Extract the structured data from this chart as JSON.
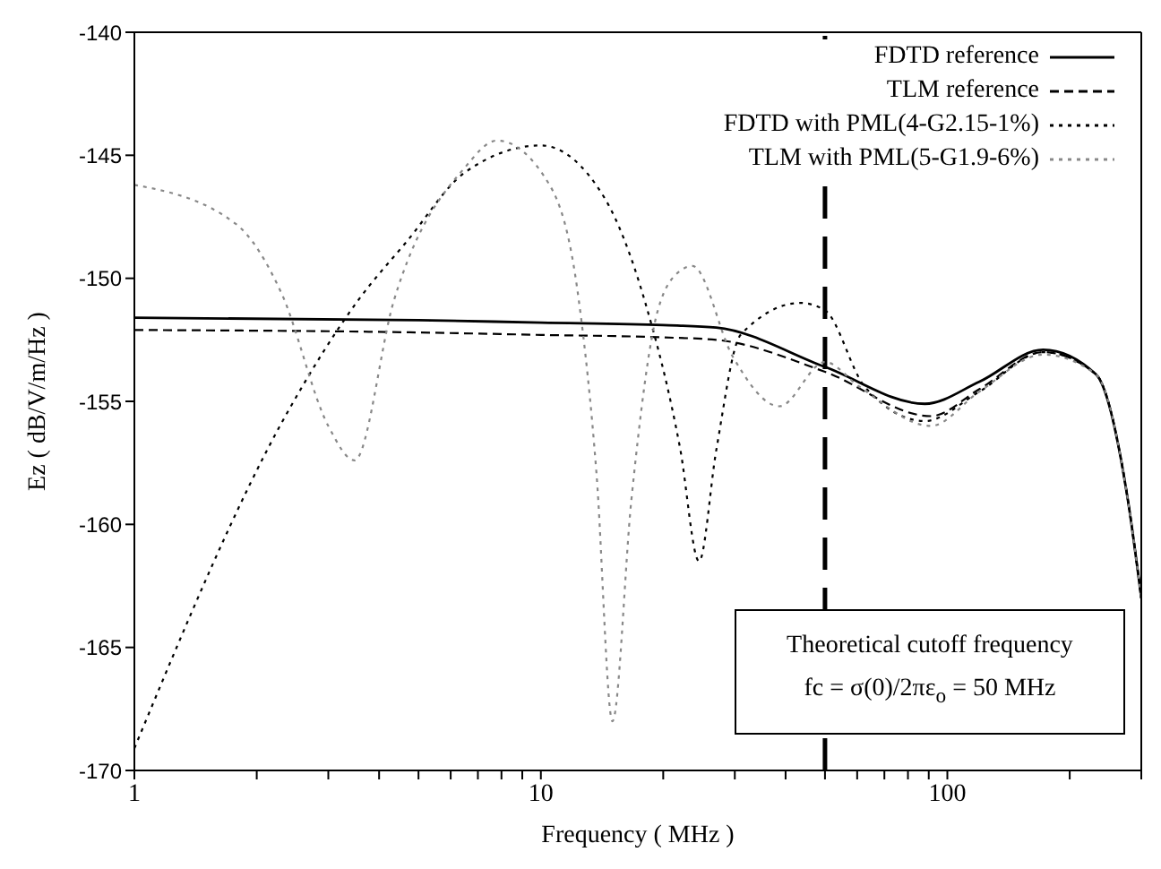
{
  "chart_data": {
    "type": "line",
    "xlabel": "Frequency ( MHz )",
    "ylabel": "Ez ( dB/V/m/Hz )",
    "log": "x",
    "grid": false,
    "legend": "top right",
    "marker": "none",
    "xlim": [
      1,
      300
    ],
    "xticks": [
      1,
      {
        "value": 2,
        "label": null
      },
      {
        "value": 3,
        "label": null
      },
      {
        "value": 4,
        "label": null
      },
      {
        "value": 5,
        "label": null
      },
      {
        "value": 6,
        "label": null
      },
      {
        "value": 7,
        "label": null
      },
      {
        "value": 8,
        "label": null
      },
      {
        "value": 9,
        "label": null
      },
      10,
      {
        "value": 20,
        "label": null
      },
      {
        "value": 30,
        "label": null
      },
      {
        "value": 40,
        "label": null
      },
      {
        "value": 50,
        "label": null
      },
      {
        "value": 60,
        "label": null
      },
      {
        "value": 70,
        "label": null
      },
      {
        "value": 80,
        "label": null
      },
      {
        "value": 90,
        "label": null
      },
      100,
      {
        "value": 200,
        "label": null
      },
      {
        "value": 300,
        "label": null
      }
    ],
    "ylim": [
      -170,
      -140
    ],
    "yticks": [
      -170,
      -165,
      -160,
      -155,
      -150,
      -145,
      -140
    ],
    "series": [
      {
        "name": "FDTD reference",
        "color": "#000000",
        "line_style": "solid",
        "x": [
          1,
          5,
          10,
          20,
          27,
          50,
          88,
          120,
          172,
          232,
          278,
          300
        ],
        "values": [
          -151.6,
          -151.7,
          -151.8,
          -151.9,
          -152.0,
          -153.6,
          -155.1,
          -154.2,
          -152.9,
          -153.9,
          -159.0,
          -163.0
        ]
      },
      {
        "name": "TLM reference",
        "color": "#000000",
        "line_style": "dashed",
        "x": [
          1,
          5,
          10,
          20,
          27,
          50,
          91,
          120,
          172,
          232,
          278,
          300
        ],
        "values": [
          -152.1,
          -152.2,
          -152.3,
          -152.4,
          -152.5,
          -153.8,
          -155.6,
          -154.5,
          -153.0,
          -153.9,
          -159.0,
          -163.0
        ]
      },
      {
        "name": "FDTD with PML(4-G2.15-1%)",
        "color": "#000000",
        "line_style": "dotted",
        "x": [
          1,
          2.37,
          3.55,
          4.68,
          6.5,
          10,
          14.3,
          18,
          22,
          24.5,
          27,
          31,
          43.5,
          50,
          62.6,
          88,
          120,
          172,
          232,
          278,
          300
        ],
        "values": [
          -169.1,
          -155.5,
          -150.9,
          -148.5,
          -145.7,
          -144.6,
          -146.7,
          -150.9,
          -156.9,
          -161.5,
          -157.0,
          -152.3,
          -151.0,
          -151.3,
          -154.4,
          -155.8,
          -154.6,
          -153.0,
          -153.9,
          -159.0,
          -163.0
        ]
      },
      {
        "name": "TLM with PML(5-G1.9-6%)",
        "color": "#888888",
        "line_style": "dotted",
        "x": [
          1,
          1.78,
          2.3,
          3.0,
          3.48,
          4.35,
          6.5,
          7.8,
          10.5,
          12.4,
          13.7,
          15,
          16.7,
          19.4,
          22,
          23.6,
          29.7,
          38.6,
          50,
          60.7,
          91,
          120,
          172,
          232,
          278,
          300
        ],
        "values": [
          -146.2,
          -147.8,
          -150.6,
          -156.0,
          -157.4,
          -150.9,
          -145.5,
          -144.4,
          -146.2,
          -150.9,
          -157.9,
          -168.0,
          -159.0,
          -151.3,
          -149.7,
          -149.5,
          -153.2,
          -155.2,
          -153.4,
          -154.4,
          -156.0,
          -154.6,
          -153.1,
          -153.9,
          -159.0,
          -163.0
        ]
      }
    ],
    "ref_lines": [
      {
        "axis": "x",
        "value": 50,
        "color": "#000000",
        "line_style": "dashed"
      }
    ],
    "annotations": [
      "Theoretical cutoff frequency",
      "fc = σ(0)/2πε$_{o}$ = 50 MHz"
    ]
  }
}
